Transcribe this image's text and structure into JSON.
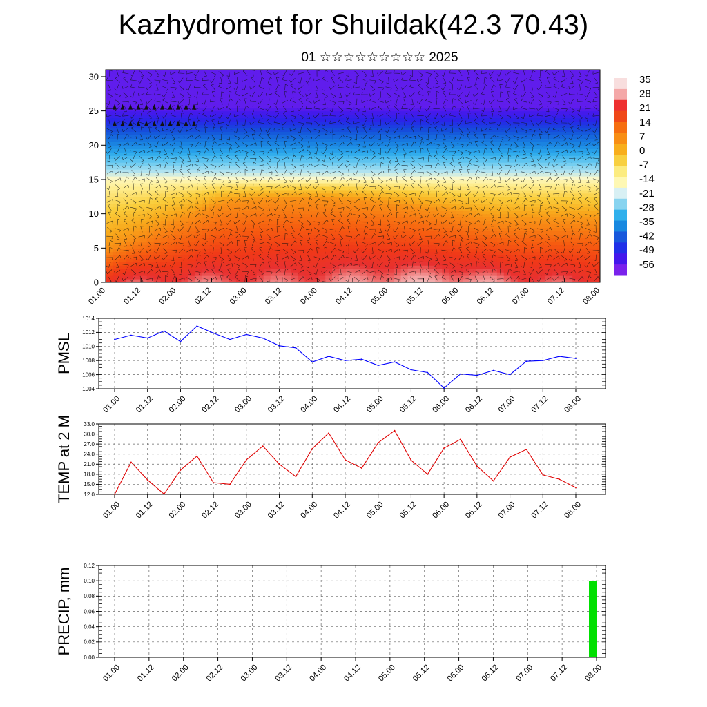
{
  "header": {
    "title": "Kazhydromet for Shuildak(42.3 70.43)",
    "subtitle": "01 ☆☆☆☆☆☆☆☆☆ 2025"
  },
  "time_ticks": [
    "01.00",
    "01.12",
    "02.00",
    "02.12",
    "03.00",
    "03.12",
    "04.00",
    "04.12",
    "05.00",
    "05.12",
    "06.00",
    "06.12",
    "07.00",
    "07.12",
    "08.00"
  ],
  "chart_data": [
    {
      "type": "heatmap",
      "name": "vertical-temperature-wind-cross-section",
      "x_labels": [
        "01.00",
        "01.12",
        "02.00",
        "02.12",
        "03.00",
        "03.12",
        "04.00",
        "04.12",
        "05.00",
        "05.12",
        "06.00",
        "06.12",
        "07.00",
        "07.12",
        "08.00"
      ],
      "ylim": [
        0,
        31
      ],
      "yticks": [
        0,
        5,
        10,
        15,
        20,
        25,
        30
      ],
      "colorbar": {
        "labels": [
          "35",
          "28",
          "21",
          "14",
          "7",
          "0",
          "-7",
          "-14",
          "-21",
          "-28",
          "-35",
          "-42",
          "-49",
          "-56"
        ],
        "colors": [
          "#f8dede",
          "#f4a8a8",
          "#ee3030",
          "#f04818",
          "#f66e10",
          "#f88e14",
          "#f8ae1c",
          "#f8d040",
          "#fcec80",
          "#fef8b4",
          "#d8f0f4",
          "#88d4f0",
          "#30b0ec",
          "#1888e0",
          "#1858dc",
          "#2030e8",
          "#4418ec",
          "#7a22ec"
        ]
      },
      "grid": false
    },
    {
      "type": "line",
      "name": "pmsl",
      "ylabel": "PMSL",
      "ylim": [
        1004,
        1014
      ],
      "yticks": [
        "1004",
        "1006",
        "1008",
        "1010",
        "1012",
        "1014"
      ],
      "line_color": "#0000ff",
      "x_hours": [
        0,
        6,
        12,
        18,
        24,
        30,
        36,
        42,
        48,
        54,
        60,
        66,
        72,
        78,
        84,
        90,
        96,
        102,
        108,
        114,
        120,
        126,
        132,
        138,
        144,
        150,
        156,
        162,
        168
      ],
      "values": [
        1011.0,
        1011.6,
        1011.2,
        1012.2,
        1010.7,
        1012.9,
        1011.9,
        1011.0,
        1011.7,
        1011.2,
        1010.1,
        1009.8,
        1007.8,
        1008.6,
        1008.0,
        1008.2,
        1007.3,
        1007.8,
        1006.7,
        1006.3,
        1004.1,
        1006.1,
        1005.9,
        1006.6,
        1006.0,
        1007.9,
        1008.0,
        1008.6,
        1008.3
      ],
      "grid": true
    },
    {
      "type": "line",
      "name": "temp-2m",
      "ylabel": "TEMP at 2 M",
      "ylim": [
        12.0,
        33.0
      ],
      "yticks": [
        "12.0",
        "15.0",
        "18.0",
        "21.0",
        "24.0",
        "27.0",
        "30.0",
        "33.0"
      ],
      "line_color": "#e00000",
      "x_hours": [
        0,
        6,
        12,
        18,
        24,
        30,
        36,
        42,
        48,
        54,
        60,
        66,
        72,
        78,
        84,
        90,
        96,
        102,
        108,
        114,
        120,
        126,
        132,
        138,
        144,
        150,
        156,
        162,
        168
      ],
      "values": [
        12.0,
        21.6,
        16.3,
        12.1,
        19.2,
        23.4,
        15.5,
        15.0,
        22.3,
        26.4,
        21.0,
        17.3,
        25.6,
        30.3,
        22.3,
        19.8,
        27.4,
        31.0,
        22.2,
        18.0,
        25.8,
        28.4,
        20.4,
        16.0,
        23.1,
        25.4,
        17.8,
        16.5,
        14.0
      ],
      "grid": true
    },
    {
      "type": "bar",
      "name": "precip",
      "ylabel": "PRECIP, mm",
      "ylim": [
        0.0,
        0.12
      ],
      "yticks": [
        "0.00",
        "0.02",
        "0.04",
        "0.06",
        "0.08",
        "0.10",
        "0.12"
      ],
      "bar_color": "#00e000",
      "bars": [
        {
          "x_hour": 168,
          "value": 0.1
        }
      ],
      "grid": true
    }
  ]
}
